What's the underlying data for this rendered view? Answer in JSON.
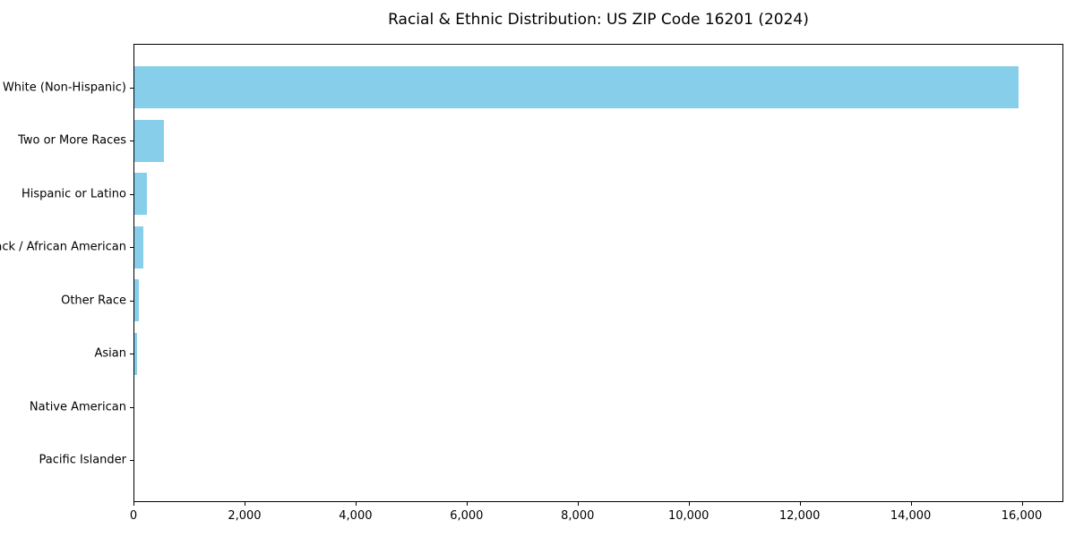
{
  "title": "Racial & Ethnic Distribution: US ZIP Code 16201 (2024)",
  "colors": {
    "bar": "#87CEEB",
    "axis": "#000000",
    "background": "#FFFFFF",
    "text": "#000000"
  },
  "chart_data": {
    "type": "bar",
    "orientation": "horizontal",
    "title": "Racial & Ethnic Distribution: US ZIP Code 16201 (2024)",
    "categories": [
      "White (Non-Hispanic)",
      "Two or More Races",
      "Hispanic or Latino",
      "Black / African American",
      "Other Race",
      "Asian",
      "Native American",
      "Pacific Islander"
    ],
    "values": [
      15950,
      530,
      220,
      165,
      85,
      45,
      0,
      0
    ],
    "xlabel": "",
    "ylabel": "",
    "xlim": [
      0,
      16750
    ],
    "xticks": [
      0,
      2000,
      4000,
      6000,
      8000,
      10000,
      12000,
      14000,
      16000
    ],
    "xtick_labels": [
      "0",
      "2,000",
      "4,000",
      "6,000",
      "8,000",
      "10,000",
      "12,000",
      "14,000",
      "16,000"
    ],
    "grid": false,
    "legend": "none",
    "bar_color": "#87CEEB"
  }
}
